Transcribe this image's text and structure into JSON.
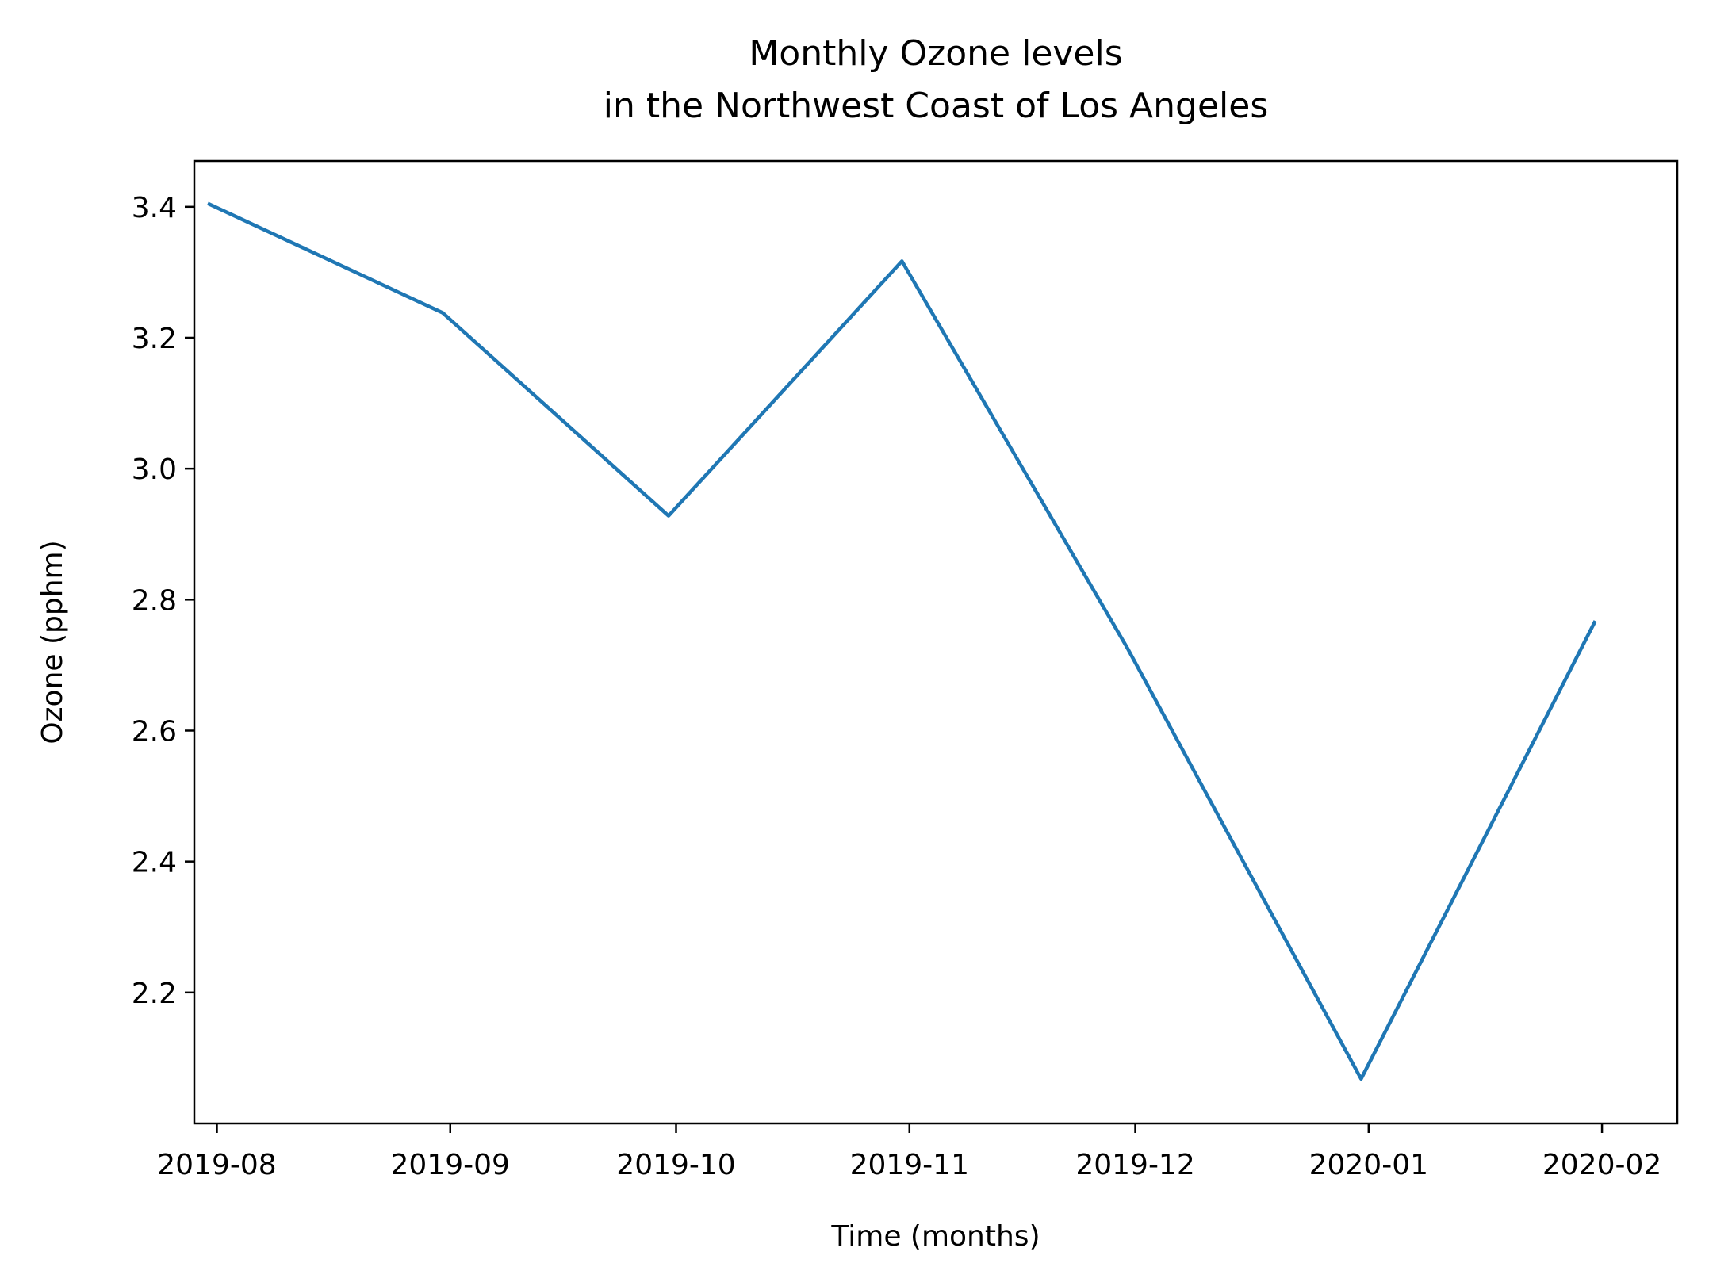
{
  "chart_data": {
    "type": "line",
    "title": "Monthly Ozone levels\nin the Northwest Coast of Los Angeles",
    "xlabel": "Time (months)",
    "ylabel": "Ozone (pphm)",
    "x_ticks": [
      "2019-08",
      "2019-09",
      "2019-10",
      "2019-11",
      "2019-12",
      "2020-01",
      "2020-02"
    ],
    "y_ticks": [
      "2.2",
      "2.4",
      "2.6",
      "2.8",
      "3.0",
      "3.2",
      "3.4"
    ],
    "ylim": [
      2.0,
      3.47
    ],
    "xlim": [
      "2019-07-29",
      "2020-02-11"
    ],
    "grid": false,
    "series": [
      {
        "color": "#1f77b4",
        "x": [
          "2019-07-31",
          "2019-08-31",
          "2019-09-30",
          "2019-10-31",
          "2019-11-30",
          "2019-12-31",
          "2020-01-31"
        ],
        "values": [
          3.404,
          3.238,
          2.928,
          3.317,
          2.725,
          2.068,
          2.765
        ]
      }
    ]
  }
}
